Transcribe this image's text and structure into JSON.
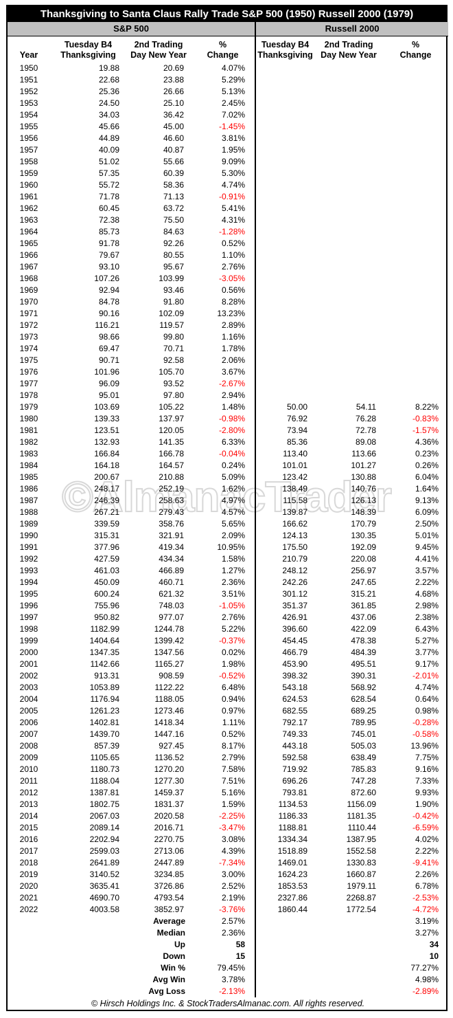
{
  "title": "Thanksgiving to Santa Claus Rally Trade S&P 500 (1950) Russell 2000 (1979)",
  "sections": {
    "left": "S&P 500",
    "right": "Russell 2000"
  },
  "columns": {
    "year": "Year",
    "thx_line1": "Tuesday B4",
    "thx_line2": "Thanksgiving",
    "ny_line1": "2nd Trading",
    "ny_line2": "Day New Year",
    "pct_line1": "%",
    "pct_line2": "Change"
  },
  "watermark": "©AlmanacTrader",
  "footer": "© Hirsch Holdings Inc. & StockTradersAlmanac.com. All rights reserved.",
  "colors": {
    "negative": "#ff0000",
    "band_bg": "#c0c0c0",
    "title_bg": "#000000",
    "title_fg": "#ffffff"
  },
  "chart_data": {
    "type": "table",
    "title": "Thanksgiving to Santa Claus Rally Trade S&P 500 (1950) Russell 2000 (1979)",
    "series_names": [
      "S&P 500",
      "Russell 2000"
    ],
    "column_labels": [
      "Year",
      "Tuesday B4 Thanksgiving",
      "2nd Trading Day New Year",
      "% Change"
    ],
    "rows": [
      {
        "year": "1950",
        "sp": [
          "19.88",
          "20.69",
          "4.07%"
        ],
        "ru": [
          "",
          "",
          ""
        ]
      },
      {
        "year": "1951",
        "sp": [
          "22.68",
          "23.88",
          "5.29%"
        ],
        "ru": [
          "",
          "",
          ""
        ]
      },
      {
        "year": "1952",
        "sp": [
          "25.36",
          "26.66",
          "5.13%"
        ],
        "ru": [
          "",
          "",
          ""
        ]
      },
      {
        "year": "1953",
        "sp": [
          "24.50",
          "25.10",
          "2.45%"
        ],
        "ru": [
          "",
          "",
          ""
        ]
      },
      {
        "year": "1954",
        "sp": [
          "34.03",
          "36.42",
          "7.02%"
        ],
        "ru": [
          "",
          "",
          ""
        ]
      },
      {
        "year": "1955",
        "sp": [
          "45.66",
          "45.00",
          "-1.45%"
        ],
        "ru": [
          "",
          "",
          ""
        ]
      },
      {
        "year": "1956",
        "sp": [
          "44.89",
          "46.60",
          "3.81%"
        ],
        "ru": [
          "",
          "",
          ""
        ]
      },
      {
        "year": "1957",
        "sp": [
          "40.09",
          "40.87",
          "1.95%"
        ],
        "ru": [
          "",
          "",
          ""
        ]
      },
      {
        "year": "1958",
        "sp": [
          "51.02",
          "55.66",
          "9.09%"
        ],
        "ru": [
          "",
          "",
          ""
        ]
      },
      {
        "year": "1959",
        "sp": [
          "57.35",
          "60.39",
          "5.30%"
        ],
        "ru": [
          "",
          "",
          ""
        ]
      },
      {
        "year": "1960",
        "sp": [
          "55.72",
          "58.36",
          "4.74%"
        ],
        "ru": [
          "",
          "",
          ""
        ]
      },
      {
        "year": "1961",
        "sp": [
          "71.78",
          "71.13",
          "-0.91%"
        ],
        "ru": [
          "",
          "",
          ""
        ]
      },
      {
        "year": "1962",
        "sp": [
          "60.45",
          "63.72",
          "5.41%"
        ],
        "ru": [
          "",
          "",
          ""
        ]
      },
      {
        "year": "1963",
        "sp": [
          "72.38",
          "75.50",
          "4.31%"
        ],
        "ru": [
          "",
          "",
          ""
        ]
      },
      {
        "year": "1964",
        "sp": [
          "85.73",
          "84.63",
          "-1.28%"
        ],
        "ru": [
          "",
          "",
          ""
        ]
      },
      {
        "year": "1965",
        "sp": [
          "91.78",
          "92.26",
          "0.52%"
        ],
        "ru": [
          "",
          "",
          ""
        ]
      },
      {
        "year": "1966",
        "sp": [
          "79.67",
          "80.55",
          "1.10%"
        ],
        "ru": [
          "",
          "",
          ""
        ]
      },
      {
        "year": "1967",
        "sp": [
          "93.10",
          "95.67",
          "2.76%"
        ],
        "ru": [
          "",
          "",
          ""
        ]
      },
      {
        "year": "1968",
        "sp": [
          "107.26",
          "103.99",
          "-3.05%"
        ],
        "ru": [
          "",
          "",
          ""
        ]
      },
      {
        "year": "1969",
        "sp": [
          "92.94",
          "93.46",
          "0.56%"
        ],
        "ru": [
          "",
          "",
          ""
        ]
      },
      {
        "year": "1970",
        "sp": [
          "84.78",
          "91.80",
          "8.28%"
        ],
        "ru": [
          "",
          "",
          ""
        ]
      },
      {
        "year": "1971",
        "sp": [
          "90.16",
          "102.09",
          "13.23%"
        ],
        "ru": [
          "",
          "",
          ""
        ]
      },
      {
        "year": "1972",
        "sp": [
          "116.21",
          "119.57",
          "2.89%"
        ],
        "ru": [
          "",
          "",
          ""
        ]
      },
      {
        "year": "1973",
        "sp": [
          "98.66",
          "99.80",
          "1.16%"
        ],
        "ru": [
          "",
          "",
          ""
        ]
      },
      {
        "year": "1974",
        "sp": [
          "69.47",
          "70.71",
          "1.78%"
        ],
        "ru": [
          "",
          "",
          ""
        ]
      },
      {
        "year": "1975",
        "sp": [
          "90.71",
          "92.58",
          "2.06%"
        ],
        "ru": [
          "",
          "",
          ""
        ]
      },
      {
        "year": "1976",
        "sp": [
          "101.96",
          "105.70",
          "3.67%"
        ],
        "ru": [
          "",
          "",
          ""
        ]
      },
      {
        "year": "1977",
        "sp": [
          "96.09",
          "93.52",
          "-2.67%"
        ],
        "ru": [
          "",
          "",
          ""
        ]
      },
      {
        "year": "1978",
        "sp": [
          "95.01",
          "97.80",
          "2.94%"
        ],
        "ru": [
          "",
          "",
          ""
        ]
      },
      {
        "year": "1979",
        "sp": [
          "103.69",
          "105.22",
          "1.48%"
        ],
        "ru": [
          "50.00",
          "54.11",
          "8.22%"
        ]
      },
      {
        "year": "1980",
        "sp": [
          "139.33",
          "137.97",
          "-0.98%"
        ],
        "ru": [
          "76.92",
          "76.28",
          "-0.83%"
        ]
      },
      {
        "year": "1981",
        "sp": [
          "123.51",
          "120.05",
          "-2.80%"
        ],
        "ru": [
          "73.94",
          "72.78",
          "-1.57%"
        ]
      },
      {
        "year": "1982",
        "sp": [
          "132.93",
          "141.35",
          "6.33%"
        ],
        "ru": [
          "85.36",
          "89.08",
          "4.36%"
        ]
      },
      {
        "year": "1983",
        "sp": [
          "166.84",
          "166.78",
          "-0.04%"
        ],
        "ru": [
          "113.40",
          "113.66",
          "0.23%"
        ]
      },
      {
        "year": "1984",
        "sp": [
          "164.18",
          "164.57",
          "0.24%"
        ],
        "ru": [
          "101.01",
          "101.27",
          "0.26%"
        ]
      },
      {
        "year": "1985",
        "sp": [
          "200.67",
          "210.88",
          "5.09%"
        ],
        "ru": [
          "123.42",
          "130.88",
          "6.04%"
        ]
      },
      {
        "year": "1986",
        "sp": [
          "248.17",
          "252.19",
          "1.62%"
        ],
        "ru": [
          "138.49",
          "140.76",
          "1.64%"
        ]
      },
      {
        "year": "1987",
        "sp": [
          "246.39",
          "258.63",
          "4.97%"
        ],
        "ru": [
          "115.58",
          "126.13",
          "9.13%"
        ]
      },
      {
        "year": "1988",
        "sp": [
          "267.21",
          "279.43",
          "4.57%"
        ],
        "ru": [
          "139.87",
          "148.39",
          "6.09%"
        ]
      },
      {
        "year": "1989",
        "sp": [
          "339.59",
          "358.76",
          "5.65%"
        ],
        "ru": [
          "166.62",
          "170.79",
          "2.50%"
        ]
      },
      {
        "year": "1990",
        "sp": [
          "315.31",
          "321.91",
          "2.09%"
        ],
        "ru": [
          "124.13",
          "130.35",
          "5.01%"
        ]
      },
      {
        "year": "1991",
        "sp": [
          "377.96",
          "419.34",
          "10.95%"
        ],
        "ru": [
          "175.50",
          "192.09",
          "9.45%"
        ]
      },
      {
        "year": "1992",
        "sp": [
          "427.59",
          "434.34",
          "1.58%"
        ],
        "ru": [
          "210.79",
          "220.08",
          "4.41%"
        ]
      },
      {
        "year": "1993",
        "sp": [
          "461.03",
          "466.89",
          "1.27%"
        ],
        "ru": [
          "248.12",
          "256.97",
          "3.57%"
        ]
      },
      {
        "year": "1994",
        "sp": [
          "450.09",
          "460.71",
          "2.36%"
        ],
        "ru": [
          "242.26",
          "247.65",
          "2.22%"
        ]
      },
      {
        "year": "1995",
        "sp": [
          "600.24",
          "621.32",
          "3.51%"
        ],
        "ru": [
          "301.12",
          "315.21",
          "4.68%"
        ]
      },
      {
        "year": "1996",
        "sp": [
          "755.96",
          "748.03",
          "-1.05%"
        ],
        "ru": [
          "351.37",
          "361.85",
          "2.98%"
        ]
      },
      {
        "year": "1997",
        "sp": [
          "950.82",
          "977.07",
          "2.76%"
        ],
        "ru": [
          "426.91",
          "437.06",
          "2.38%"
        ]
      },
      {
        "year": "1998",
        "sp": [
          "1182.99",
          "1244.78",
          "5.22%"
        ],
        "ru": [
          "396.60",
          "422.09",
          "6.43%"
        ]
      },
      {
        "year": "1999",
        "sp": [
          "1404.64",
          "1399.42",
          "-0.37%"
        ],
        "ru": [
          "454.45",
          "478.38",
          "5.27%"
        ]
      },
      {
        "year": "2000",
        "sp": [
          "1347.35",
          "1347.56",
          "0.02%"
        ],
        "ru": [
          "466.79",
          "484.39",
          "3.77%"
        ]
      },
      {
        "year": "2001",
        "sp": [
          "1142.66",
          "1165.27",
          "1.98%"
        ],
        "ru": [
          "453.90",
          "495.51",
          "9.17%"
        ]
      },
      {
        "year": "2002",
        "sp": [
          "913.31",
          "908.59",
          "-0.52%"
        ],
        "ru": [
          "398.32",
          "390.31",
          "-2.01%"
        ]
      },
      {
        "year": "2003",
        "sp": [
          "1053.89",
          "1122.22",
          "6.48%"
        ],
        "ru": [
          "543.18",
          "568.92",
          "4.74%"
        ]
      },
      {
        "year": "2004",
        "sp": [
          "1176.94",
          "1188.05",
          "0.94%"
        ],
        "ru": [
          "624.53",
          "628.54",
          "0.64%"
        ]
      },
      {
        "year": "2005",
        "sp": [
          "1261.23",
          "1273.46",
          "0.97%"
        ],
        "ru": [
          "682.55",
          "689.25",
          "0.98%"
        ]
      },
      {
        "year": "2006",
        "sp": [
          "1402.81",
          "1418.34",
          "1.11%"
        ],
        "ru": [
          "792.17",
          "789.95",
          "-0.28%"
        ]
      },
      {
        "year": "2007",
        "sp": [
          "1439.70",
          "1447.16",
          "0.52%"
        ],
        "ru": [
          "749.33",
          "745.01",
          "-0.58%"
        ]
      },
      {
        "year": "2008",
        "sp": [
          "857.39",
          "927.45",
          "8.17%"
        ],
        "ru": [
          "443.18",
          "505.03",
          "13.96%"
        ]
      },
      {
        "year": "2009",
        "sp": [
          "1105.65",
          "1136.52",
          "2.79%"
        ],
        "ru": [
          "592.58",
          "638.49",
          "7.75%"
        ]
      },
      {
        "year": "2010",
        "sp": [
          "1180.73",
          "1270.20",
          "7.58%"
        ],
        "ru": [
          "719.92",
          "785.83",
          "9.16%"
        ]
      },
      {
        "year": "2011",
        "sp": [
          "1188.04",
          "1277.30",
          "7.51%"
        ],
        "ru": [
          "696.26",
          "747.28",
          "7.33%"
        ]
      },
      {
        "year": "2012",
        "sp": [
          "1387.81",
          "1459.37",
          "5.16%"
        ],
        "ru": [
          "793.81",
          "872.60",
          "9.93%"
        ]
      },
      {
        "year": "2013",
        "sp": [
          "1802.75",
          "1831.37",
          "1.59%"
        ],
        "ru": [
          "1134.53",
          "1156.09",
          "1.90%"
        ]
      },
      {
        "year": "2014",
        "sp": [
          "2067.03",
          "2020.58",
          "-2.25%"
        ],
        "ru": [
          "1186.33",
          "1181.35",
          "-0.42%"
        ]
      },
      {
        "year": "2015",
        "sp": [
          "2089.14",
          "2016.71",
          "-3.47%"
        ],
        "ru": [
          "1188.81",
          "1110.44",
          "-6.59%"
        ]
      },
      {
        "year": "2016",
        "sp": [
          "2202.94",
          "2270.75",
          "3.08%"
        ],
        "ru": [
          "1334.34",
          "1387.95",
          "4.02%"
        ]
      },
      {
        "year": "2017",
        "sp": [
          "2599.03",
          "2713.06",
          "4.39%"
        ],
        "ru": [
          "1518.89",
          "1552.58",
          "2.22%"
        ]
      },
      {
        "year": "2018",
        "sp": [
          "2641.89",
          "2447.89",
          "-7.34%"
        ],
        "ru": [
          "1469.01",
          "1330.83",
          "-9.41%"
        ]
      },
      {
        "year": "2019",
        "sp": [
          "3140.52",
          "3234.85",
          "3.00%"
        ],
        "ru": [
          "1624.23",
          "1660.87",
          "2.26%"
        ]
      },
      {
        "year": "2020",
        "sp": [
          "3635.41",
          "3726.86",
          "2.52%"
        ],
        "ru": [
          "1853.53",
          "1979.11",
          "6.78%"
        ]
      },
      {
        "year": "2021",
        "sp": [
          "4690.70",
          "4793.54",
          "2.19%"
        ],
        "ru": [
          "2327.86",
          "2268.87",
          "-2.53%"
        ]
      },
      {
        "year": "2022",
        "sp": [
          "4003.58",
          "3852.97",
          "-3.76%"
        ],
        "ru": [
          "1860.44",
          "1772.54",
          "-4.72%"
        ]
      }
    ],
    "summary": [
      {
        "label": "Average",
        "sp": "2.57%",
        "ru": "3.19%",
        "bold": false
      },
      {
        "label": "Median",
        "sp": "2.36%",
        "ru": "3.27%",
        "bold": false
      },
      {
        "label": "Up",
        "sp": "58",
        "ru": "34",
        "bold": true
      },
      {
        "label": "Down",
        "sp": "15",
        "ru": "10",
        "bold": true
      },
      {
        "label": "Win %",
        "sp": "79.45%",
        "ru": "77.27%",
        "bold": false
      },
      {
        "label": "Avg Win",
        "sp": "3.78%",
        "ru": "4.98%",
        "bold": false
      },
      {
        "label": "Avg Loss",
        "sp": "-2.13%",
        "ru": "-2.89%",
        "bold": false
      }
    ]
  }
}
